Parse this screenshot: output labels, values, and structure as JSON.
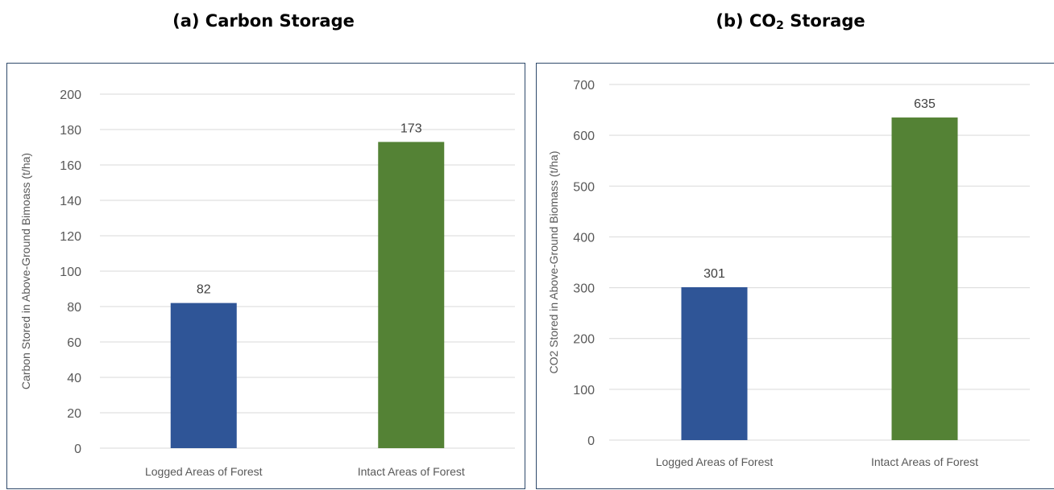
{
  "chart_data": [
    {
      "type": "bar",
      "title": "(a) Carbon Storage",
      "categories": [
        "Logged Areas of Forest",
        "Intact Areas of Forest"
      ],
      "values": [
        82,
        173
      ],
      "data_labels": [
        "82",
        "173"
      ],
      "bar_colors": [
        "#2f5597",
        "#548235"
      ],
      "xlabel": "",
      "ylabel": "Carbon Stored in Above-Ground Bimoass (t/ha)",
      "ylim": [
        0,
        200
      ],
      "yticks": [
        0,
        20,
        40,
        60,
        80,
        100,
        120,
        140,
        160,
        180,
        200
      ],
      "grid": true
    },
    {
      "type": "bar",
      "title": "(b) CO2 Storage",
      "title_parts": [
        "(b) CO",
        "2",
        " Storage"
      ],
      "categories": [
        "Logged Areas of Forest",
        "Intact Areas of Forest"
      ],
      "values": [
        301,
        635
      ],
      "data_labels": [
        "301",
        "635"
      ],
      "bar_colors": [
        "#2f5597",
        "#548235"
      ],
      "xlabel": "",
      "ylabel": "CO2 Stored in Above-Ground Biomass (t/ha)",
      "ylim": [
        0,
        700
      ],
      "yticks": [
        0,
        100,
        200,
        300,
        400,
        500,
        600,
        700
      ],
      "grid": true
    }
  ]
}
